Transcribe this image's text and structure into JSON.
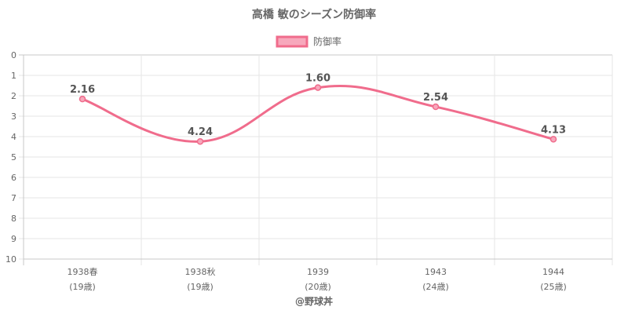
{
  "chart_data": {
    "type": "line",
    "title": "高橋 敏のシーズン防御率",
    "categories": [
      [
        "1938春",
        "(19歳)"
      ],
      [
        "1938秋",
        "(19歳)"
      ],
      [
        "1939",
        "(20歳)"
      ],
      [
        "1943",
        "(24歳)"
      ],
      [
        "1944",
        "(25歳)"
      ]
    ],
    "series": [
      {
        "name": "防御率",
        "values": [
          2.16,
          4.24,
          1.6,
          2.54,
          4.13
        ],
        "labels": [
          "2.16",
          "4.24",
          "1.60",
          "2.54",
          "4.13"
        ]
      }
    ],
    "ylim": [
      0,
      10
    ],
    "y_reversed": true,
    "yticks": [
      "0",
      "1",
      "2",
      "3",
      "4",
      "5",
      "6",
      "7",
      "8",
      "9",
      "10"
    ],
    "grid": true,
    "legend": "top-center",
    "colors": {
      "line": "#f06c8c",
      "fill": "#f7a8bc",
      "grid": "#e6e6e6",
      "axis": "#c8c8c8",
      "text": "#666666"
    },
    "credit": "@野球丼"
  }
}
